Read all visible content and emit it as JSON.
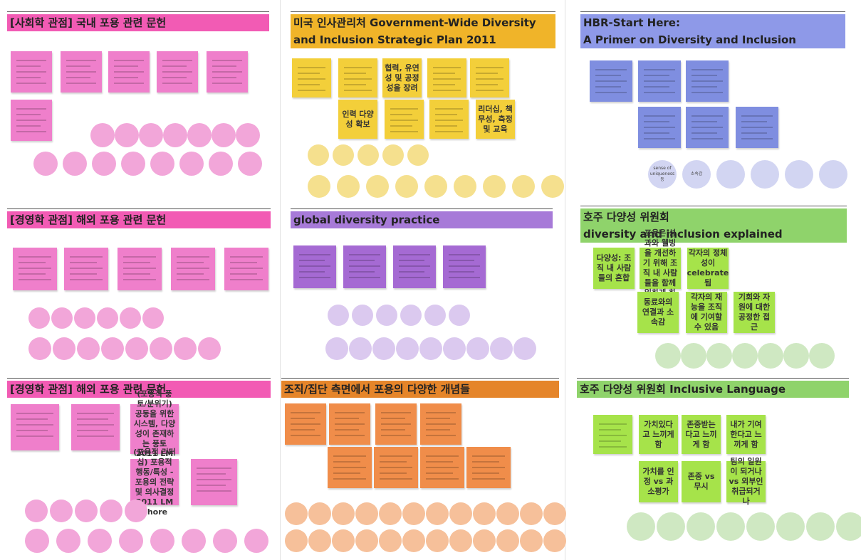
{
  "panels": [
    {
      "title": [
        "[사회학 관점] 국내 포용 관련 문헌"
      ],
      "notes": [],
      "circle_labels": []
    },
    {
      "title": [
        "미국 인사관리처 Government-Wide Diversity",
        "and Inclusion Strategic Plan 2011"
      ],
      "notes": [
        "협력, 유연성 및 공정성을 장려",
        "인력 다양성 확보",
        "리더십, 책무성, 측정 및 교육"
      ],
      "circle_labels": []
    },
    {
      "title": [
        "HBR-Start Here:",
        "A Primer on Diversity and Inclusion"
      ],
      "notes": [],
      "circle_labels": [
        "sense of uniqueness 등",
        "소속감"
      ]
    },
    {
      "title": [
        "[경영학 관점] 해외 포용 관련 문헌"
      ],
      "notes": [],
      "circle_labels": []
    },
    {
      "title": [
        "global diversity practice"
      ],
      "notes": [],
      "circle_labels": []
    },
    {
      "title": [
        "호주 다양성 위원회",
        "diversity and inclusion explained"
      ],
      "notes": [
        "다양성: 조직 내 사람들의 혼합",
        "포용은 성과와 웰빙을 개선하기 위해 조직 내 사람들을 함께 일하게 하는 것",
        "각자의 정체성이 celebrate됨",
        "동료와의 연결과 소속감",
        "각자의 재능을 조직에 기여할 수 있음",
        "기회와 자원에 대한 공정한 접근"
      ],
      "circle_labels": []
    },
    {
      "title": [
        "[경영학 관점] 해외 포용 관련 문헌"
      ],
      "notes": [
        "(포용적 풍토/분위기) 공동을 위한 시스템, 다양성이 존재하는 풍토 2011 LM Shore",
        "(포용적 리더십) 포용적 행동/특성 - 포용의 전략 및 의사결정 2011 LM Shore"
      ],
      "circle_labels": []
    },
    {
      "title": [
        "조직/집단 측면에서 포용의 다양한 개념들"
      ],
      "notes": [],
      "circle_labels": []
    },
    {
      "title": [
        "호주 다양성 위원회 Inclusive Language"
      ],
      "notes": [
        "가치있다고 느끼게 함",
        "존중받는다고 느끼게 함",
        "내가 기여한다고 느끼게 함",
        "가치를 인정 vs 과소평가",
        "존중 vs 무시",
        "팀의 일원이 되거나 vs 외부인 취급되거나"
      ],
      "circle_labels": []
    }
  ]
}
